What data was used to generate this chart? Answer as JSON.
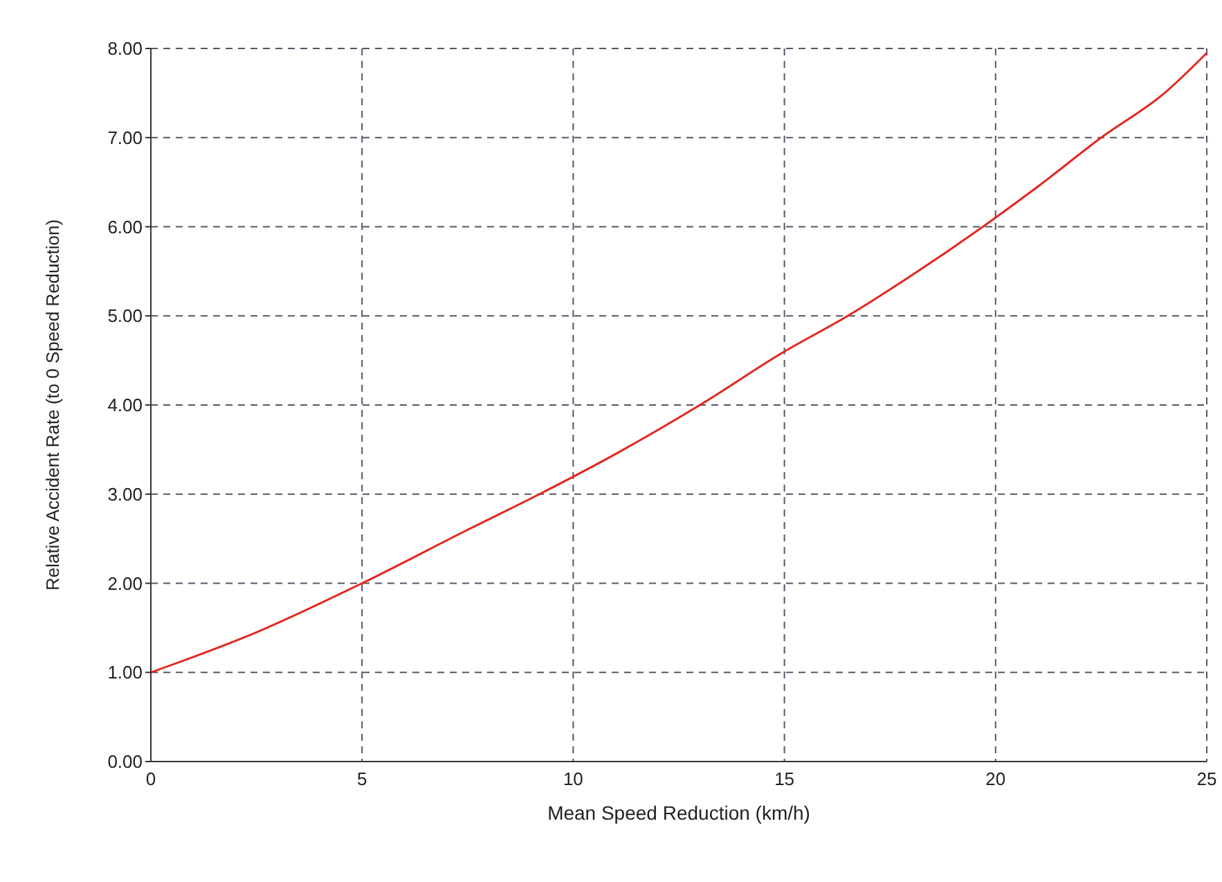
{
  "chart_data": {
    "type": "line",
    "xlabel": "Mean Speed Reduction (km/h)",
    "ylabel": "Relative Accident Rate (to 0 Speed Reduction)",
    "xlim": [
      0,
      25
    ],
    "xticks": [
      0,
      5,
      10,
      15,
      20,
      25
    ],
    "ylim": [
      0,
      8
    ],
    "yticks": [
      {
        "value": 0,
        "label": "0.00"
      },
      {
        "value": 1,
        "label": "1.00"
      },
      {
        "value": 2,
        "label": "2.00"
      },
      {
        "value": 3,
        "label": "3.00"
      },
      {
        "value": 4,
        "label": "4.00"
      },
      {
        "value": 5,
        "label": "5.00"
      },
      {
        "value": 6,
        "label": "6.00"
      },
      {
        "value": 7,
        "label": "7.00"
      },
      {
        "value": 8,
        "label": "8.00"
      }
    ],
    "grid": true,
    "marker": "none",
    "line_style": "solid",
    "series": [
      {
        "color": "#e3261f",
        "x": [
          0,
          2.5,
          5,
          7.5,
          9.2,
          11,
          13,
          15,
          16.5,
          18,
          19.7,
          21,
          22.5,
          24,
          25
        ],
        "values": [
          1.0,
          1.45,
          2.0,
          2.6,
          3.0,
          3.45,
          4.0,
          4.6,
          5.0,
          5.45,
          6.0,
          6.45,
          7.0,
          7.5,
          7.95
        ]
      }
    ]
  }
}
